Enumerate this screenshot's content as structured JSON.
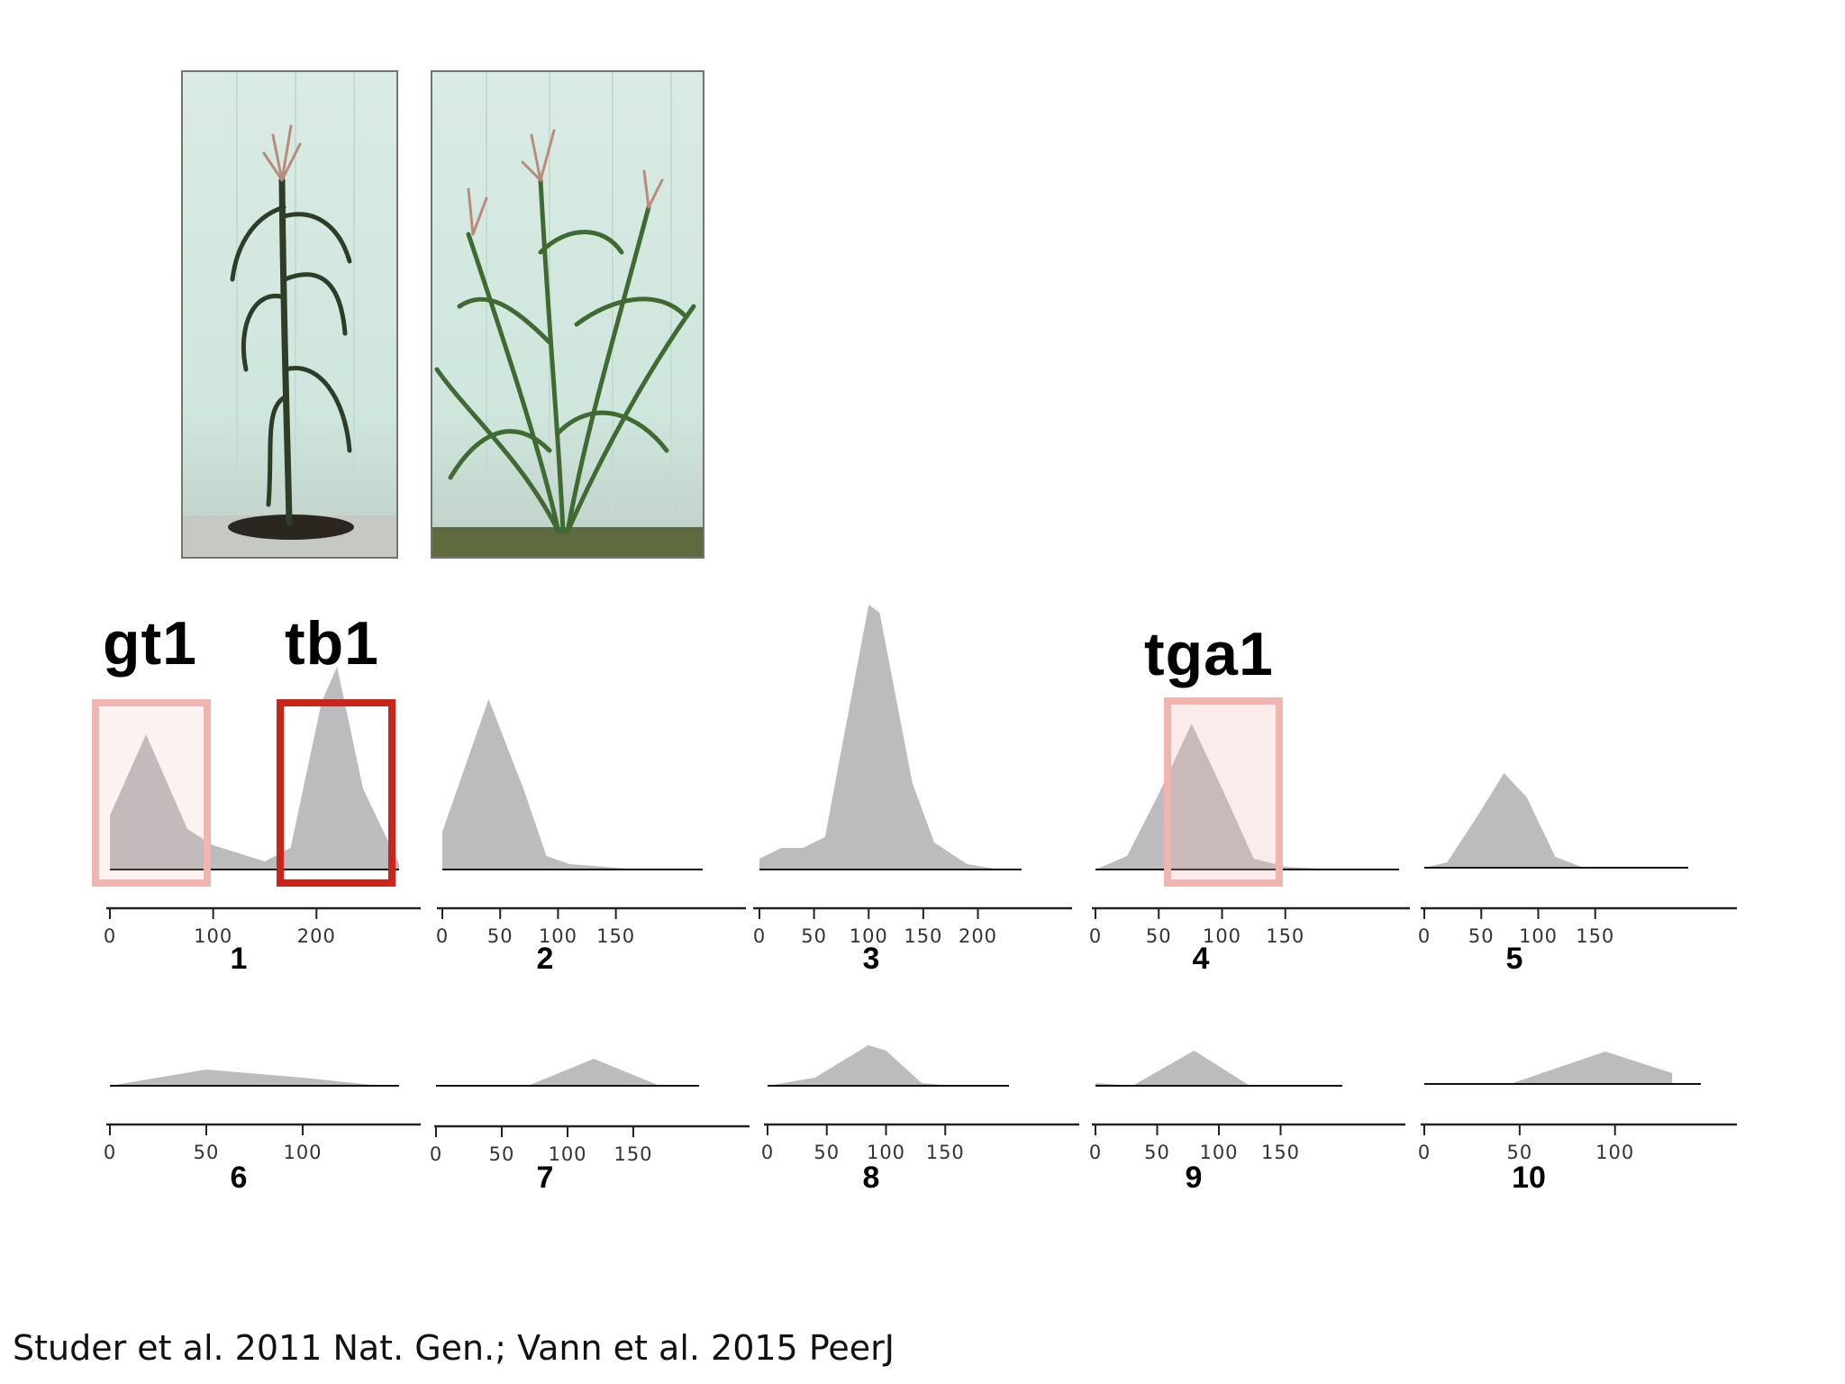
{
  "citation": "Studer et al. 2011 Nat. Gen.; Vann et al. 2015 PeerJ",
  "gene_labels": [
    {
      "text": "gt1",
      "color": "#f0b5b0"
    },
    {
      "text": "tb1",
      "color": "#c8261a"
    },
    {
      "text": "tga1",
      "color": "#f0b5b0"
    }
  ],
  "photos": [
    {
      "subject": "single-stalk-maize-plant"
    },
    {
      "subject": "branched-teosinte-plant"
    }
  ],
  "colors": {
    "fill": "#bcbbbd",
    "baseline": "#111111",
    "axis": "#222222",
    "highlight_strong": "#c8261a",
    "highlight_faint": "#f0b5b0"
  },
  "chart_data": [
    {
      "type": "area",
      "panel": "1",
      "xlim": [
        0,
        280
      ],
      "x": [
        0,
        0,
        35,
        75,
        100,
        125,
        150,
        175,
        205,
        220,
        245,
        280
      ],
      "y": [
        0,
        0.2,
        0.5,
        0.15,
        0.09,
        0.06,
        0.03,
        0.08,
        0.62,
        0.75,
        0.3,
        0.02
      ],
      "ticks": [
        "0",
        "100",
        "200"
      ],
      "tick_values": [
        0,
        100,
        200
      ]
    },
    {
      "type": "area",
      "panel": "2",
      "xlim": [
        0,
        190
      ],
      "x": [
        0,
        0,
        40,
        70,
        90,
        110,
        140,
        170
      ],
      "y": [
        0,
        0.14,
        0.63,
        0.3,
        0.05,
        0.02,
        0.01,
        0.0
      ],
      "ticks": [
        "0",
        "50",
        "100",
        "150"
      ],
      "tick_values": [
        0,
        50,
        100,
        150
      ]
    },
    {
      "type": "area",
      "panel": "3",
      "xlim": [
        0,
        240
      ],
      "x": [
        0,
        20,
        40,
        60,
        80,
        100,
        110,
        140,
        160,
        190,
        220
      ],
      "y": [
        0.04,
        0.08,
        0.08,
        0.12,
        0.55,
        0.98,
        0.95,
        0.32,
        0.1,
        0.02,
        0.0
      ],
      "ticks": [
        "0",
        "50",
        "100",
        "150",
        "200"
      ],
      "tick_values": [
        0,
        50,
        100,
        150,
        200
      ]
    },
    {
      "type": "area",
      "panel": "4",
      "xlim": [
        0,
        200
      ],
      "x": [
        0,
        25,
        50,
        76,
        100,
        125,
        150,
        190
      ],
      "y": [
        0.0,
        0.05,
        0.28,
        0.54,
        0.3,
        0.04,
        0.01,
        0.0
      ],
      "ticks": [
        "0",
        "50",
        "100",
        "150"
      ],
      "tick_values": [
        0,
        50,
        100,
        150
      ]
    },
    {
      "type": "area",
      "panel": "5",
      "xlim": [
        0,
        200
      ],
      "x": [
        0,
        20,
        45,
        70,
        90,
        115,
        140,
        170
      ],
      "y": [
        0.0,
        0.02,
        0.18,
        0.35,
        0.26,
        0.04,
        0.0,
        0.0
      ],
      "ticks": [
        "0",
        "50",
        "100",
        "150"
      ],
      "tick_values": [
        0,
        50,
        100,
        150
      ]
    },
    {
      "type": "area",
      "panel": "6",
      "xlim": [
        0,
        150
      ],
      "x": [
        0,
        50,
        100,
        140
      ],
      "y": [
        0.0,
        0.06,
        0.03,
        0.0
      ],
      "ticks": [
        "0",
        "50",
        "100"
      ],
      "tick_values": [
        0,
        50,
        100
      ]
    },
    {
      "type": "area",
      "panel": "7",
      "xlim": [
        0,
        200
      ],
      "x": [
        0,
        70,
        120,
        170
      ],
      "y": [
        0.0,
        0.0,
        0.1,
        0.0
      ],
      "ticks": [
        "0",
        "50",
        "100",
        "150"
      ],
      "tick_values": [
        0,
        50,
        100,
        150
      ]
    },
    {
      "type": "area",
      "panel": "8",
      "xlim": [
        0,
        200
      ],
      "x": [
        0,
        40,
        85,
        100,
        130,
        155
      ],
      "y": [
        0.0,
        0.03,
        0.15,
        0.13,
        0.01,
        0.0
      ],
      "ticks": [
        "0",
        "50",
        "100",
        "150"
      ],
      "tick_values": [
        0,
        50,
        100,
        150
      ]
    },
    {
      "type": "area",
      "panel": "9",
      "xlim": [
        0,
        200
      ],
      "x": [
        0,
        30,
        80,
        125,
        160
      ],
      "y": [
        0.01,
        0.0,
        0.13,
        0.0,
        0.0
      ],
      "ticks": [
        "0",
        "50",
        "100",
        "150"
      ],
      "tick_values": [
        0,
        50,
        100,
        150
      ]
    },
    {
      "type": "area",
      "panel": "10",
      "xlim": [
        0,
        145
      ],
      "x": [
        0,
        45,
        95,
        130
      ],
      "y": [
        0.0,
        0.0,
        0.12,
        0.04
      ],
      "ticks": [
        "0",
        "50",
        "100"
      ],
      "tick_values": [
        0,
        50,
        100
      ]
    }
  ]
}
